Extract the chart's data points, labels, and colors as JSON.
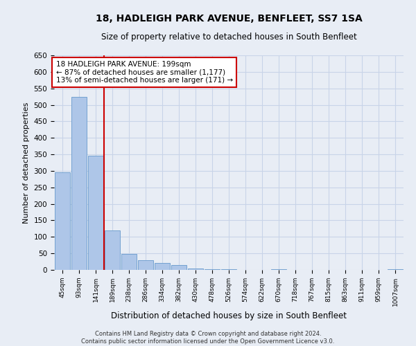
{
  "title": "18, HADLEIGH PARK AVENUE, BENFLEET, SS7 1SA",
  "subtitle": "Size of property relative to detached houses in South Benfleet",
  "xlabel": "Distribution of detached houses by size in South Benfleet",
  "ylabel": "Number of detached properties",
  "categories": [
    "45sqm",
    "93sqm",
    "141sqm",
    "189sqm",
    "238sqm",
    "286sqm",
    "334sqm",
    "382sqm",
    "430sqm",
    "478sqm",
    "526sqm",
    "574sqm",
    "622sqm",
    "670sqm",
    "718sqm",
    "767sqm",
    "815sqm",
    "863sqm",
    "911sqm",
    "959sqm",
    "1007sqm"
  ],
  "values": [
    295,
    525,
    345,
    120,
    48,
    30,
    20,
    15,
    5,
    3,
    2,
    0,
    0,
    2,
    0,
    0,
    0,
    0,
    0,
    0,
    2
  ],
  "bar_color": "#aec6e8",
  "bar_edge_color": "#6699cc",
  "vline_x_index": 2.5,
  "vline_color": "#cc0000",
  "ylim": [
    0,
    650
  ],
  "yticks": [
    0,
    50,
    100,
    150,
    200,
    250,
    300,
    350,
    400,
    450,
    500,
    550,
    600,
    650
  ],
  "annotation_text": "18 HADLEIGH PARK AVENUE: 199sqm\n← 87% of detached houses are smaller (1,177)\n13% of semi-detached houses are larger (171) →",
  "annotation_box_color": "#ffffff",
  "annotation_box_edge": "#cc0000",
  "footer_line1": "Contains HM Land Registry data © Crown copyright and database right 2024.",
  "footer_line2": "Contains public sector information licensed under the Open Government Licence v3.0.",
  "bg_color": "#e8edf5",
  "plot_bg_color": "#e8edf5",
  "grid_color": "#c8d4e8"
}
